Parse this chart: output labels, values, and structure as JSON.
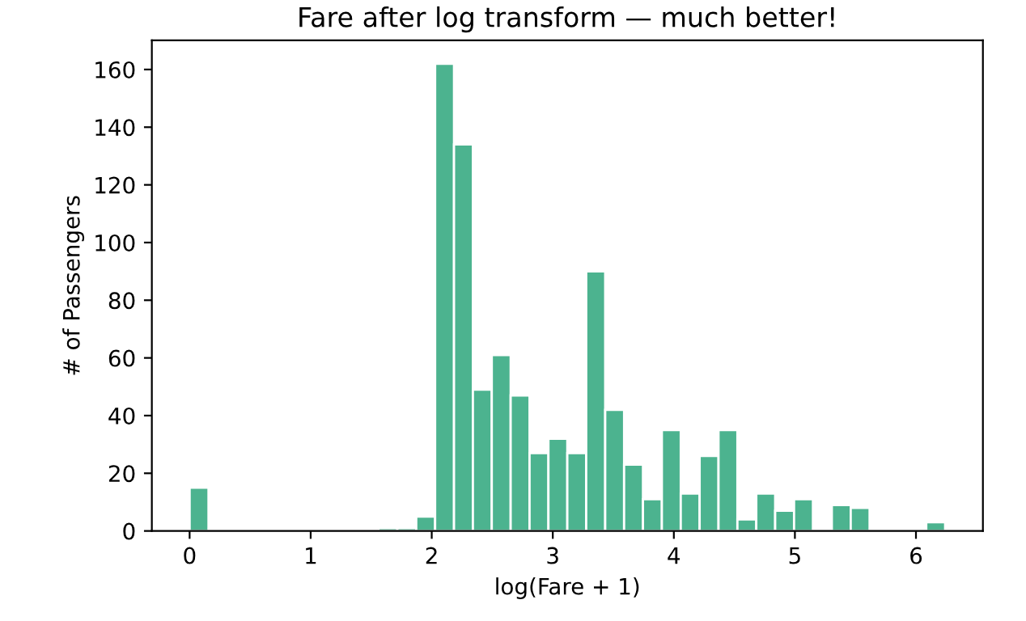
{
  "chart_data": {
    "type": "histogram",
    "title": "Fare after log transform — much better!",
    "xlabel": "log(Fare + 1)",
    "ylabel": "# of Passengers",
    "bins": [
      0,
      0.156,
      0.312,
      0.468,
      0.624,
      0.78,
      0.936,
      1.092,
      1.248,
      1.404,
      1.56,
      1.716,
      1.872,
      2.028,
      2.184,
      2.34,
      2.496,
      2.652,
      2.808,
      2.964,
      3.12,
      3.276,
      3.433,
      3.589,
      3.745,
      3.901,
      4.057,
      4.213,
      4.369,
      4.525,
      4.681,
      4.837,
      4.993,
      5.149,
      5.305,
      5.461,
      5.617,
      5.773,
      5.929,
      6.085,
      6.241
    ],
    "values": [
      15,
      0,
      0,
      0,
      0,
      0,
      0,
      0,
      0,
      0,
      1,
      1,
      5,
      162,
      134,
      49,
      61,
      47,
      27,
      32,
      27,
      90,
      42,
      23,
      11,
      35,
      13,
      26,
      35,
      4,
      13,
      7,
      11,
      0,
      9,
      8,
      0,
      0,
      0,
      3
    ],
    "color": "#4cb38f",
    "xlim": [
      -0.312,
      6.553
    ],
    "xticks": [
      0,
      1,
      2,
      3,
      4,
      5,
      6
    ],
    "ylim": [
      0,
      170.1
    ],
    "yticks": [
      0,
      20,
      40,
      60,
      80,
      100,
      120,
      140,
      160
    ],
    "grid": false,
    "legend": false
  }
}
